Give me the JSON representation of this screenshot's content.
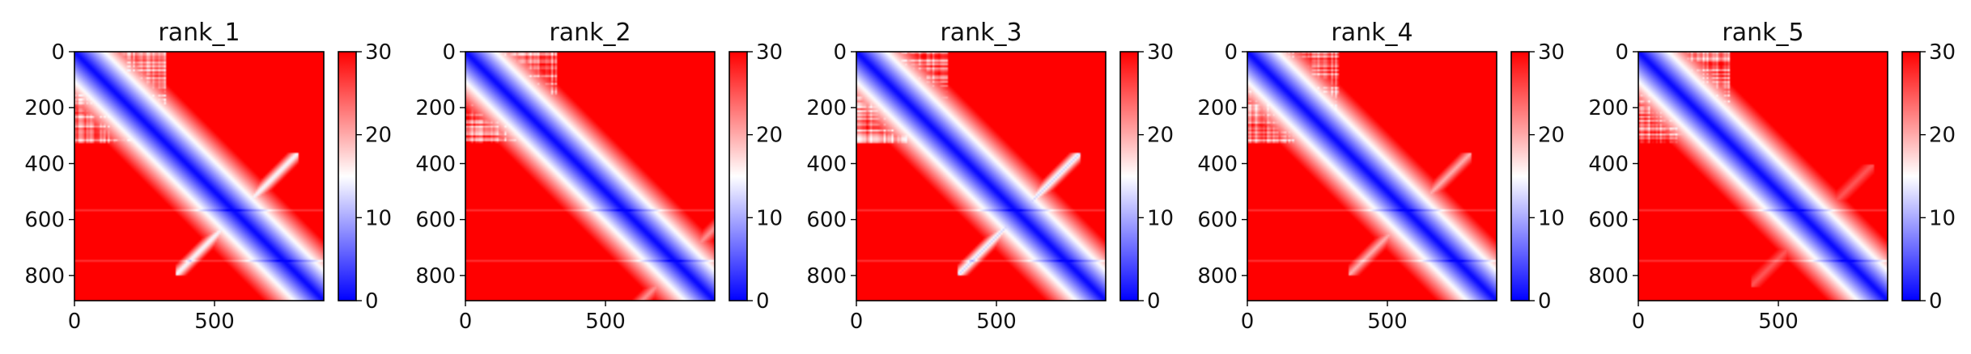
{
  "chart_data": [
    {
      "type": "heatmap",
      "title": "rank_1",
      "xlim": [
        0,
        890
      ],
      "ylim": [
        890,
        0
      ],
      "xticks": [
        0,
        500
      ],
      "yticks": [
        0,
        200,
        400,
        600,
        800
      ],
      "colorbar": {
        "min": 0,
        "max": 30,
        "ticks": [
          0,
          10,
          20,
          30
        ],
        "colormap": "bwr"
      },
      "series": [
        {
          "diagonal_band": true,
          "crossing_center": 580,
          "crossing_strength": 0.9
        }
      ]
    },
    {
      "type": "heatmap",
      "title": "rank_2",
      "xlim": [
        0,
        890
      ],
      "ylim": [
        890,
        0
      ],
      "xticks": [
        0,
        500
      ],
      "yticks": [
        0,
        200,
        400,
        600,
        800
      ],
      "colorbar": {
        "min": 0,
        "max": 30,
        "ticks": [
          0,
          10,
          20,
          30
        ],
        "colormap": "bwr"
      },
      "series": [
        {
          "diagonal_band": true,
          "crossing_center": 760,
          "crossing_strength": 0.5
        }
      ]
    },
    {
      "type": "heatmap",
      "title": "rank_3",
      "xlim": [
        0,
        890
      ],
      "ylim": [
        890,
        0
      ],
      "xticks": [
        0,
        500
      ],
      "yticks": [
        0,
        200,
        400,
        600,
        800
      ],
      "colorbar": {
        "min": 0,
        "max": 30,
        "ticks": [
          0,
          10,
          20,
          30
        ],
        "colormap": "bwr"
      },
      "series": [
        {
          "diagonal_band": true,
          "crossing_center": 580,
          "crossing_strength": 1.0
        }
      ]
    },
    {
      "type": "heatmap",
      "title": "rank_4",
      "xlim": [
        0,
        890
      ],
      "ylim": [
        890,
        0
      ],
      "xticks": [
        0,
        500
      ],
      "yticks": [
        0,
        200,
        400,
        600,
        800
      ],
      "colorbar": {
        "min": 0,
        "max": 30,
        "ticks": [
          0,
          10,
          20,
          30
        ],
        "colormap": "bwr"
      },
      "series": [
        {
          "diagonal_band": true,
          "crossing_center": 580,
          "crossing_strength": 0.6
        }
      ]
    },
    {
      "type": "heatmap",
      "title": "rank_5",
      "xlim": [
        0,
        890
      ],
      "ylim": [
        890,
        0
      ],
      "xticks": [
        0,
        500
      ],
      "yticks": [
        0,
        200,
        400,
        600,
        800
      ],
      "colorbar": {
        "min": 0,
        "max": 30,
        "ticks": [
          0,
          10,
          20,
          30
        ],
        "colormap": "bwr"
      },
      "series": [
        {
          "diagonal_band": true,
          "crossing_center": 620,
          "crossing_strength": 0.3
        }
      ]
    }
  ],
  "colors": {
    "high": "#ff0000",
    "mid": "#ffffff",
    "low": "#0000ff"
  }
}
